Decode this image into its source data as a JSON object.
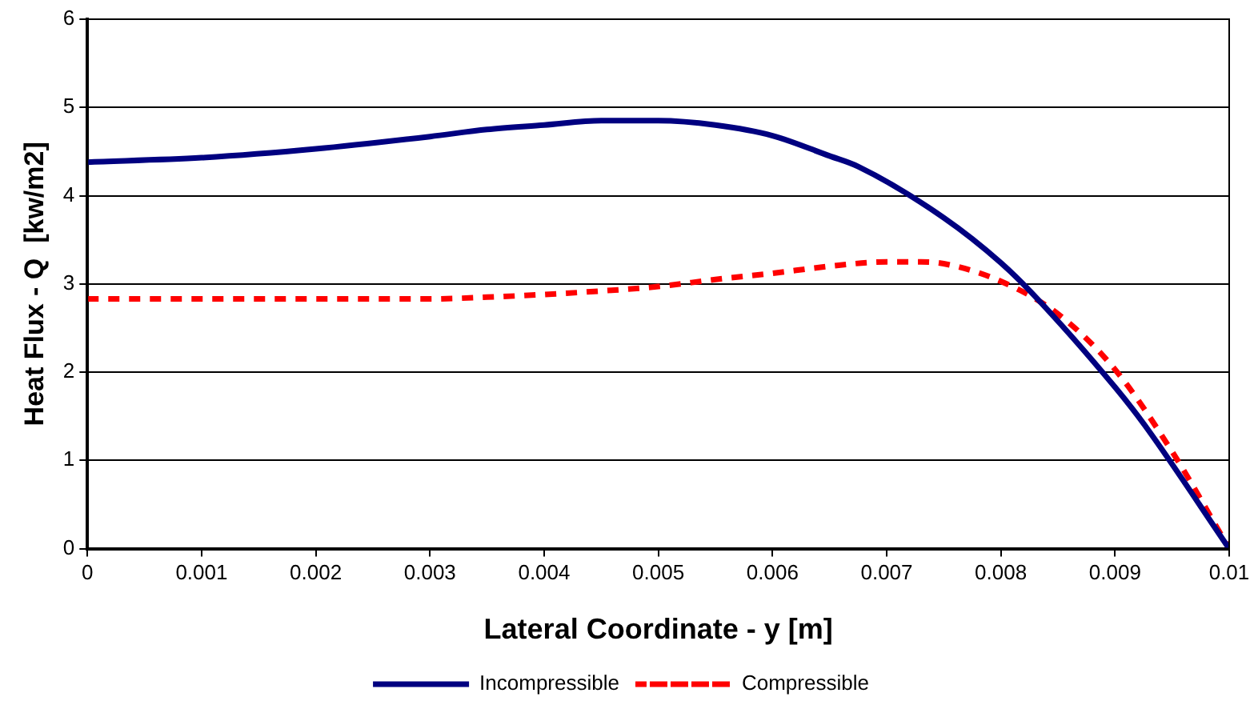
{
  "chart_data": {
    "type": "line",
    "xlabel": "Lateral Coordinate - y [m]",
    "ylabel": "Heat Flux - Q  [kw/m2]",
    "xlim": [
      0,
      0.01
    ],
    "xticks": [
      0,
      0.001,
      0.002,
      0.003,
      0.004,
      0.005,
      0.006,
      0.007,
      0.008,
      0.009,
      0.01
    ],
    "ylim": [
      0,
      6
    ],
    "yticks": [
      0,
      1,
      2,
      3,
      4,
      5,
      6
    ],
    "grid": "y",
    "legend": "bottom",
    "marker": "none",
    "series": [
      {
        "name": "Incompressible",
        "color": "#000080",
        "line_style": "solid",
        "x": [
          0,
          0.001,
          0.002,
          0.003,
          0.0035,
          0.004,
          0.0045,
          0.005,
          0.0055,
          0.006,
          0.0065,
          0.00675,
          0.0075,
          0.008,
          0.00827,
          0.009,
          0.00926,
          0.01
        ],
        "values": [
          4.38,
          4.43,
          4.53,
          4.67,
          4.75,
          4.8,
          4.85,
          4.85,
          4.8,
          4.68,
          4.45,
          4.33,
          3.75,
          3.24,
          2.9,
          1.83,
          1.4,
          0
        ]
      },
      {
        "name": "Compressible",
        "color": "#ff0000",
        "line_style": "dashed",
        "x": [
          0,
          0.001,
          0.002,
          0.003,
          0.0035,
          0.004,
          0.0045,
          0.005,
          0.0055,
          0.006,
          0.0065,
          0.007,
          0.0073,
          0.0075,
          0.008,
          0.0085,
          0.009,
          0.0095,
          0.01
        ],
        "values": [
          2.83,
          2.83,
          2.83,
          2.83,
          2.85,
          2.88,
          2.92,
          2.97,
          3.05,
          3.12,
          3.2,
          3.25,
          3.25,
          3.23,
          3.03,
          2.66,
          2.03,
          1.1,
          0
        ]
      }
    ]
  }
}
